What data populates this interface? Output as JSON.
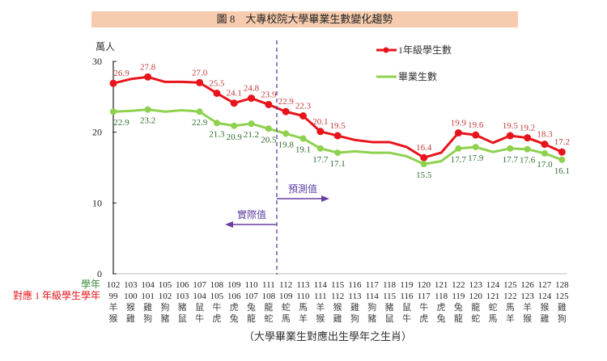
{
  "title": "圖 8　大專校院大學畢業生數變化趨勢",
  "colors": {
    "first_year": "#e8141b",
    "graduates": "#8fd14f",
    "red_label": "#c0393b",
    "green_label": "#2e6b2e",
    "divider": "#5b3fa0",
    "title_bg": "#f7cbad"
  },
  "chart_data": {
    "type": "line",
    "title": "圖 8　大專校院大學畢業生數變化趨勢",
    "ylabel": "萬人",
    "ylim": [
      0,
      30
    ],
    "yticks": [
      0,
      10,
      20,
      30
    ],
    "grid": false,
    "legend_position": "top-right",
    "x": [
      "102",
      "103",
      "104",
      "105",
      "106",
      "107",
      "108",
      "109",
      "110",
      "111",
      "112",
      "113",
      "114",
      "115",
      "116",
      "117",
      "118",
      "119",
      "120",
      "121",
      "122",
      "123",
      "124",
      "125",
      "126",
      "127",
      "128"
    ],
    "x_row_label": "學年",
    "x2": [
      "99",
      "100",
      "101",
      "102",
      "103",
      "104",
      "105",
      "106",
      "107",
      "108",
      "109",
      "110",
      "111",
      "112",
      "113",
      "114",
      "115",
      "116",
      "117",
      "118",
      "119",
      "120",
      "121",
      "122",
      "123",
      "124",
      "125"
    ],
    "x2_row_label": "對應 1 年級學生學年",
    "zodiac_row1": [
      "羊",
      "猴",
      "雞",
      "狗",
      "豬",
      "鼠",
      "牛",
      "虎",
      "兔",
      "龍",
      "蛇",
      "馬",
      "羊",
      "猴",
      "雞",
      "狗",
      "豬",
      "鼠",
      "牛",
      "虎",
      "兔",
      "龍",
      "蛇",
      "馬",
      "羊",
      "猴",
      "雞"
    ],
    "zodiac_row2": [
      "猴",
      "雞",
      "狗",
      "豬",
      "鼠",
      "牛",
      "虎",
      "兔",
      "龍",
      "蛇",
      "馬",
      "羊",
      "猴",
      "雞",
      "狗",
      "豬",
      "鼠",
      "牛",
      "虎",
      "兔",
      "龍",
      "蛇",
      "馬",
      "羊",
      "猴",
      "雞",
      "狗"
    ],
    "x_caption": "（大學畢業生對應出生學年之生肖）",
    "series": [
      {
        "name": "1年級學生數",
        "values": [
          26.9,
          27.5,
          27.8,
          27.1,
          27.1,
          27.0,
          25.5,
          24.1,
          24.8,
          23.9,
          22.9,
          22.3,
          20.1,
          19.5,
          18.9,
          18.6,
          18.6,
          17.9,
          16.4,
          17.1,
          19.9,
          19.6,
          18.5,
          19.5,
          19.2,
          18.3,
          17.2
        ],
        "labeled": [
          true,
          false,
          true,
          false,
          false,
          true,
          true,
          true,
          true,
          true,
          true,
          true,
          true,
          true,
          false,
          false,
          false,
          false,
          true,
          false,
          true,
          true,
          false,
          true,
          true,
          true,
          true
        ]
      },
      {
        "name": "畢業生數",
        "values": [
          22.9,
          23.0,
          23.2,
          22.9,
          23.1,
          22.9,
          21.3,
          20.9,
          21.2,
          20.5,
          19.8,
          19.1,
          17.7,
          17.1,
          17.3,
          17.1,
          17.1,
          16.6,
          15.5,
          15.9,
          17.7,
          17.9,
          17.2,
          17.7,
          17.6,
          17.0,
          16.1
        ],
        "labeled": [
          true,
          false,
          true,
          false,
          false,
          true,
          true,
          true,
          true,
          true,
          true,
          true,
          true,
          true,
          false,
          false,
          false,
          false,
          true,
          false,
          true,
          true,
          false,
          true,
          true,
          true,
          true
        ]
      }
    ],
    "annotations": {
      "actual": "實際值",
      "forecast": "預測值",
      "divider_between": [
        "111",
        "112"
      ]
    }
  }
}
